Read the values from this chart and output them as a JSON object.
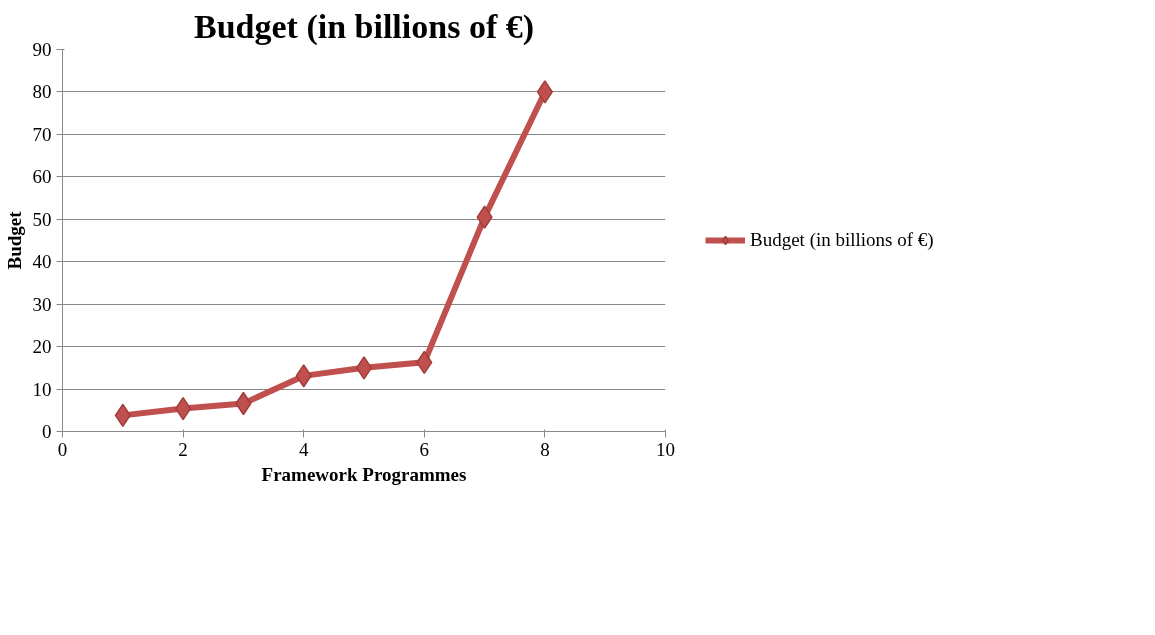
{
  "chart_data": {
    "type": "line",
    "title": "Budget (in billions of €)",
    "xlabel": "Framework Programmes",
    "ylabel": "Budget",
    "x": [
      1,
      2,
      3,
      4,
      5,
      6,
      7,
      8
    ],
    "series": [
      {
        "name": "Budget (in billions of €)",
        "color": "#c0504d",
        "values": [
          3.8,
          5.4,
          6.6,
          13.1,
          15,
          16.3,
          50.5,
          80
        ]
      }
    ],
    "xlim": [
      0,
      10
    ],
    "xticks": [
      0,
      2,
      4,
      6,
      8,
      10
    ],
    "ylim": [
      0,
      90
    ],
    "yticks": [
      0,
      10,
      20,
      30,
      40,
      50,
      60,
      70,
      80,
      90
    ],
    "grid": "y",
    "legend": "right",
    "marker": "diamond",
    "line_style": "solid"
  }
}
